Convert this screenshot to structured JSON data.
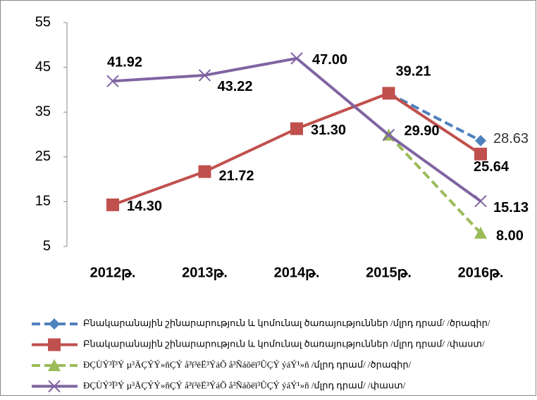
{
  "chart_data": {
    "type": "line",
    "categories": [
      "2012թ.",
      "2013թ.",
      "2014թ.",
      "2015թ.",
      "2016թ."
    ],
    "ylim": [
      5,
      55
    ],
    "yticks": [
      5,
      15,
      25,
      35,
      45,
      55
    ],
    "grid": false,
    "series": [
      {
        "name": "Բնակարանային շինարարություն և կոմունալ ծառայություններ /մլրդ դրամ/ /ծրագիր/",
        "color": "#4f81bd",
        "dash": true,
        "marker": "diamond",
        "values": [
          null,
          null,
          null,
          39.21,
          28.63
        ],
        "value_labels": [
          null,
          null,
          null,
          null,
          "28.63"
        ]
      },
      {
        "name": "Բնակարանային շինարարություն և կոմունալ ծառայություններ /մլրդ դրամ/ /փաստ/",
        "color": "#c0504d",
        "dash": false,
        "marker": "square",
        "values": [
          14.3,
          21.72,
          31.3,
          39.21,
          25.64
        ],
        "value_labels": [
          "14.30",
          "21.72",
          "31.30",
          "39.21",
          "25.64"
        ]
      },
      {
        "name": "ÐÇÙÝ³Ï³Ý µ³ÄÇÝÝ»ñÇÝ å³ï³ëË³ÝáÕ å³Ñáõëï³ÛÇÝ ýáÝ¹»ñ /մլրդ դրամ/ /ծրագիր/",
        "color": "#9bbb59",
        "dash": true,
        "marker": "triangle",
        "values": [
          null,
          null,
          null,
          29.9,
          8.0
        ],
        "value_labels": [
          null,
          null,
          null,
          null,
          "8.00"
        ]
      },
      {
        "name": "ÐÇÙÝ³Ï³Ý µ³ÄÇÝÝ»ñÇÝ å³ï³ëË³ÝáÕ å³Ñáõëï³ÛÇÝ ýáÝ¹»ñ /մլրդ դրամ/ /փաստ/",
        "color": "#8064a2",
        "dash": false,
        "marker": "x",
        "values": [
          41.92,
          43.22,
          47.0,
          29.9,
          15.13
        ],
        "value_labels": [
          "41.92",
          "43.22",
          "47.00",
          "29.90",
          "15.13"
        ]
      }
    ]
  }
}
